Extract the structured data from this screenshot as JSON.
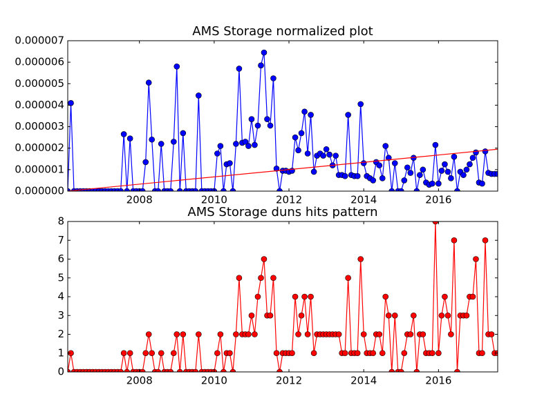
{
  "chart_data": [
    {
      "type": "line",
      "title": "AMS Storage normalized plot",
      "x": [
        2006.083,
        2006.167,
        2006.25,
        2006.333,
        2006.417,
        2006.5,
        2006.583,
        2006.667,
        2006.75,
        2006.833,
        2006.917,
        2007,
        2007.083,
        2007.167,
        2007.25,
        2007.333,
        2007.417,
        2007.5,
        2007.583,
        2007.667,
        2007.75,
        2007.833,
        2007.917,
        2008,
        2008.083,
        2008.167,
        2008.25,
        2008.333,
        2008.417,
        2008.5,
        2008.583,
        2008.667,
        2008.75,
        2008.833,
        2008.917,
        2009,
        2009.083,
        2009.167,
        2009.25,
        2009.333,
        2009.417,
        2009.5,
        2009.583,
        2009.667,
        2009.75,
        2009.833,
        2009.917,
        2010,
        2010.083,
        2010.167,
        2010.25,
        2010.333,
        2010.417,
        2010.5,
        2010.583,
        2010.667,
        2010.75,
        2010.833,
        2010.917,
        2011,
        2011.083,
        2011.167,
        2011.25,
        2011.333,
        2011.417,
        2011.5,
        2011.583,
        2011.667,
        2011.75,
        2011.833,
        2011.917,
        2012,
        2012.083,
        2012.167,
        2012.25,
        2012.333,
        2012.417,
        2012.5,
        2012.583,
        2012.667,
        2012.75,
        2012.833,
        2012.917,
        2013,
        2013.083,
        2013.167,
        2013.25,
        2013.333,
        2013.417,
        2013.5,
        2013.583,
        2013.667,
        2013.75,
        2013.833,
        2013.917,
        2014,
        2014.083,
        2014.167,
        2014.25,
        2014.333,
        2014.417,
        2014.5,
        2014.583,
        2014.667,
        2014.75,
        2014.833,
        2014.917,
        2015,
        2015.083,
        2015.167,
        2015.25,
        2015.333,
        2015.417,
        2015.5,
        2015.583,
        2015.667,
        2015.75,
        2015.833,
        2015.917,
        2016,
        2016.083,
        2016.167,
        2016.25,
        2016.333,
        2016.417,
        2016.5,
        2016.583,
        2016.667,
        2016.75,
        2016.833,
        2016.917,
        2017,
        2017.083,
        2017.167,
        2017.25,
        2017.333,
        2017.417,
        2017.5,
        2017.583
      ],
      "series": [
        {
          "color": "#0000ff",
          "values": [
            0,
            4.1e-06,
            0,
            0,
            0,
            0,
            0,
            0,
            0,
            0,
            0,
            0,
            0,
            0,
            0,
            0,
            0,
            0,
            2.65e-06,
            0,
            2.45e-06,
            0,
            0,
            0,
            0,
            1.35e-06,
            5.05e-06,
            2.4e-06,
            0,
            0,
            2.2e-06,
            0,
            0,
            0,
            2.3e-06,
            5.8e-06,
            0,
            2.7e-06,
            0,
            0,
            0,
            0,
            4.45e-06,
            0,
            0,
            0,
            0,
            0,
            1.75e-06,
            2.1e-06,
            0,
            1.25e-06,
            1.3e-06,
            0,
            2.2e-06,
            5.7e-06,
            2.25e-06,
            2.3e-06,
            2.1e-06,
            3.35e-06,
            2.15e-06,
            3.05e-06,
            5.85e-06,
            6.45e-06,
            3.35e-06,
            3.05e-06,
            5.25e-06,
            1.05e-06,
            0,
            9.5e-07,
            9.5e-07,
            9e-07,
            9.5e-07,
            2.5e-06,
            1.9e-06,
            2.7e-06,
            3.7e-06,
            1.75e-06,
            3.55e-06,
            9e-07,
            1.65e-06,
            1.75e-06,
            1.65e-06,
            1.95e-06,
            1.7e-06,
            1.2e-06,
            1.65e-06,
            7.5e-07,
            7.5e-07,
            7e-07,
            3.55e-06,
            7.5e-07,
            7e-07,
            7e-07,
            4.05e-06,
            1.3e-06,
            7e-07,
            6e-07,
            5e-07,
            1.35e-06,
            1.2e-06,
            6e-07,
            2.1e-06,
            1.55e-06,
            0,
            1.3e-06,
            0,
            0,
            5e-07,
            1.1e-06,
            8.5e-07,
            1.55e-06,
            0,
            7.5e-07,
            1e-06,
            4e-07,
            3e-07,
            3.5e-07,
            2.15e-06,
            3.5e-07,
            9.5e-07,
            1.25e-06,
            9e-07,
            6e-07,
            1.6e-06,
            0,
            9e-07,
            7.5e-07,
            1e-06,
            1.25e-06,
            1.55e-06,
            1.8e-06,
            4e-07,
            3.5e-07,
            1.85e-06,
            8.5e-07,
            8e-07,
            8e-07,
            8e-07
          ]
        }
      ],
      "trend": {
        "color": "#ff0000",
        "x": [
          2006.083,
          2017.583
        ],
        "values": [
          0,
          1.95e-06
        ]
      },
      "xlim": [
        2006.083,
        2017.583
      ],
      "xticks": [
        2008,
        2010,
        2012,
        2014,
        2016
      ],
      "ylim": [
        0,
        7e-06
      ],
      "yticks": [
        {
          "value": 0,
          "label": "0.000000"
        },
        {
          "value": 1e-06,
          "label": "0.000001"
        },
        {
          "value": 2e-06,
          "label": "0.000002"
        },
        {
          "value": 3e-06,
          "label": "0.000003"
        },
        {
          "value": 4e-06,
          "label": "0.000004"
        },
        {
          "value": 5e-06,
          "label": "0.000005"
        },
        {
          "value": 6e-06,
          "label": "0.000006"
        },
        {
          "value": 7e-06,
          "label": "0.000007"
        }
      ],
      "grid": false
    },
    {
      "type": "line",
      "title": "AMS Storage duns hits pattern",
      "x": [
        2006.083,
        2006.167,
        2006.25,
        2006.333,
        2006.417,
        2006.5,
        2006.583,
        2006.667,
        2006.75,
        2006.833,
        2006.917,
        2007,
        2007.083,
        2007.167,
        2007.25,
        2007.333,
        2007.417,
        2007.5,
        2007.583,
        2007.667,
        2007.75,
        2007.833,
        2007.917,
        2008,
        2008.083,
        2008.167,
        2008.25,
        2008.333,
        2008.417,
        2008.5,
        2008.583,
        2008.667,
        2008.75,
        2008.833,
        2008.917,
        2009,
        2009.083,
        2009.167,
        2009.25,
        2009.333,
        2009.417,
        2009.5,
        2009.583,
        2009.667,
        2009.75,
        2009.833,
        2009.917,
        2010,
        2010.083,
        2010.167,
        2010.25,
        2010.333,
        2010.417,
        2010.5,
        2010.583,
        2010.667,
        2010.75,
        2010.833,
        2010.917,
        2011,
        2011.083,
        2011.167,
        2011.25,
        2011.333,
        2011.417,
        2011.5,
        2011.583,
        2011.667,
        2011.75,
        2011.833,
        2011.917,
        2012,
        2012.083,
        2012.167,
        2012.25,
        2012.333,
        2012.417,
        2012.5,
        2012.583,
        2012.667,
        2012.75,
        2012.833,
        2012.917,
        2013,
        2013.083,
        2013.167,
        2013.25,
        2013.333,
        2013.417,
        2013.5,
        2013.583,
        2013.667,
        2013.75,
        2013.833,
        2013.917,
        2014,
        2014.083,
        2014.167,
        2014.25,
        2014.333,
        2014.417,
        2014.5,
        2014.583,
        2014.667,
        2014.75,
        2014.833,
        2014.917,
        2015,
        2015.083,
        2015.167,
        2015.25,
        2015.333,
        2015.417,
        2015.5,
        2015.583,
        2015.667,
        2015.75,
        2015.833,
        2015.917,
        2016,
        2016.083,
        2016.167,
        2016.25,
        2016.333,
        2016.417,
        2016.5,
        2016.583,
        2016.667,
        2016.75,
        2016.833,
        2016.917,
        2017,
        2017.083,
        2017.167,
        2017.25,
        2017.333,
        2017.417,
        2017.5,
        2017.583
      ],
      "series": [
        {
          "color": "#ff0000",
          "values": [
            0,
            1,
            0,
            0,
            0,
            0,
            0,
            0,
            0,
            0,
            0,
            0,
            0,
            0,
            0,
            0,
            0,
            0,
            1,
            0,
            1,
            0,
            0,
            0,
            0,
            1,
            2,
            1,
            0,
            0,
            1,
            0,
            0,
            0,
            1,
            2,
            0,
            2,
            0,
            0,
            0,
            0,
            2,
            0,
            0,
            0,
            0,
            0,
            1,
            2,
            0,
            1,
            1,
            0,
            2,
            5,
            2,
            2,
            2,
            3,
            2,
            4,
            5,
            6,
            3,
            3,
            5,
            1,
            0,
            1,
            1,
            1,
            1,
            4,
            2,
            3,
            4,
            2,
            4,
            1,
            2,
            2,
            2,
            2,
            2,
            2,
            2,
            2,
            1,
            1,
            5,
            1,
            1,
            1,
            6,
            2,
            1,
            1,
            1,
            2,
            2,
            1,
            4,
            3,
            0,
            3,
            0,
            0,
            1,
            2,
            2,
            3,
            0,
            2,
            2,
            1,
            1,
            1,
            8,
            1,
            3,
            4,
            3,
            2,
            7,
            0,
            3,
            3,
            3,
            4,
            4,
            6,
            1,
            1,
            7,
            2,
            2,
            1,
            1
          ]
        }
      ],
      "xlim": [
        2006.083,
        2017.583
      ],
      "xticks": [
        2008,
        2010,
        2012,
        2014,
        2016
      ],
      "ylim": [
        0,
        8
      ],
      "yticks": [
        0,
        1,
        2,
        3,
        4,
        5,
        6,
        7,
        8
      ],
      "grid": false
    }
  ]
}
